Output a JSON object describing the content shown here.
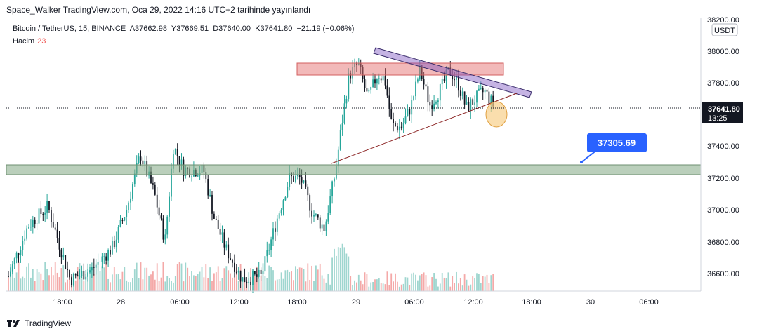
{
  "header": {
    "publish_line": "Space_Walker TradingView.com, Oca 29, 2022 14:16 UTC+2 tarihinde yayınlandı"
  },
  "symbol": {
    "name": "Bitcoin / TetherUS, 15, BINANCE",
    "open": "A37662.98",
    "high": "Y37669.51",
    "low": "D37640.00",
    "close": "K37641.80",
    "change": "−21.19 (−0.06%)",
    "volume_label": "Hacim",
    "volume_value": "23"
  },
  "price_axis": {
    "currency": "USDT",
    "ticks": [
      "38200.00",
      "38000.00",
      "37800.00",
      "37600.00",
      "37400.00",
      "37200.00",
      "37000.00",
      "36800.00",
      "36600.00"
    ],
    "current_price": "37641.80",
    "countdown": "13:25"
  },
  "time_axis": {
    "ticks": [
      "18:00",
      "28",
      "06:00",
      "12:00",
      "18:00",
      "29",
      "06:00",
      "12:00",
      "18:00",
      "30",
      "06:00"
    ]
  },
  "annotations": {
    "price_callout": "37305.69"
  },
  "footer": {
    "brand": "TradingView"
  },
  "colors": {
    "up": "#26a69a",
    "down": "#131722",
    "resistance_zone": "#e57373",
    "support_zone": "#81a784",
    "trendline_upper": "#7e57c2",
    "trendline_lower": "#8b2323",
    "callout": "#2962ff",
    "highlight_circle": "#f5b041"
  },
  "chart_data": {
    "type": "candlestick",
    "symbol": "Bitcoin / TetherUS",
    "interval": "15",
    "exchange": "BINANCE",
    "ylim": [
      36500,
      38250
    ],
    "last_price": 37641.8,
    "support_zone": [
      37220,
      37285
    ],
    "resistance_zone": [
      37845,
      37935
    ],
    "upper_trendline": {
      "from": [
        "29 00:45",
        38010
      ],
      "to": [
        "29 16:00",
        37710
      ]
    },
    "lower_trendline": {
      "from": [
        "28 22:40",
        37290
      ],
      "to": [
        "29 16:00",
        37680
      ]
    },
    "price_callout": 37305.69,
    "volume_legend": 23
  }
}
